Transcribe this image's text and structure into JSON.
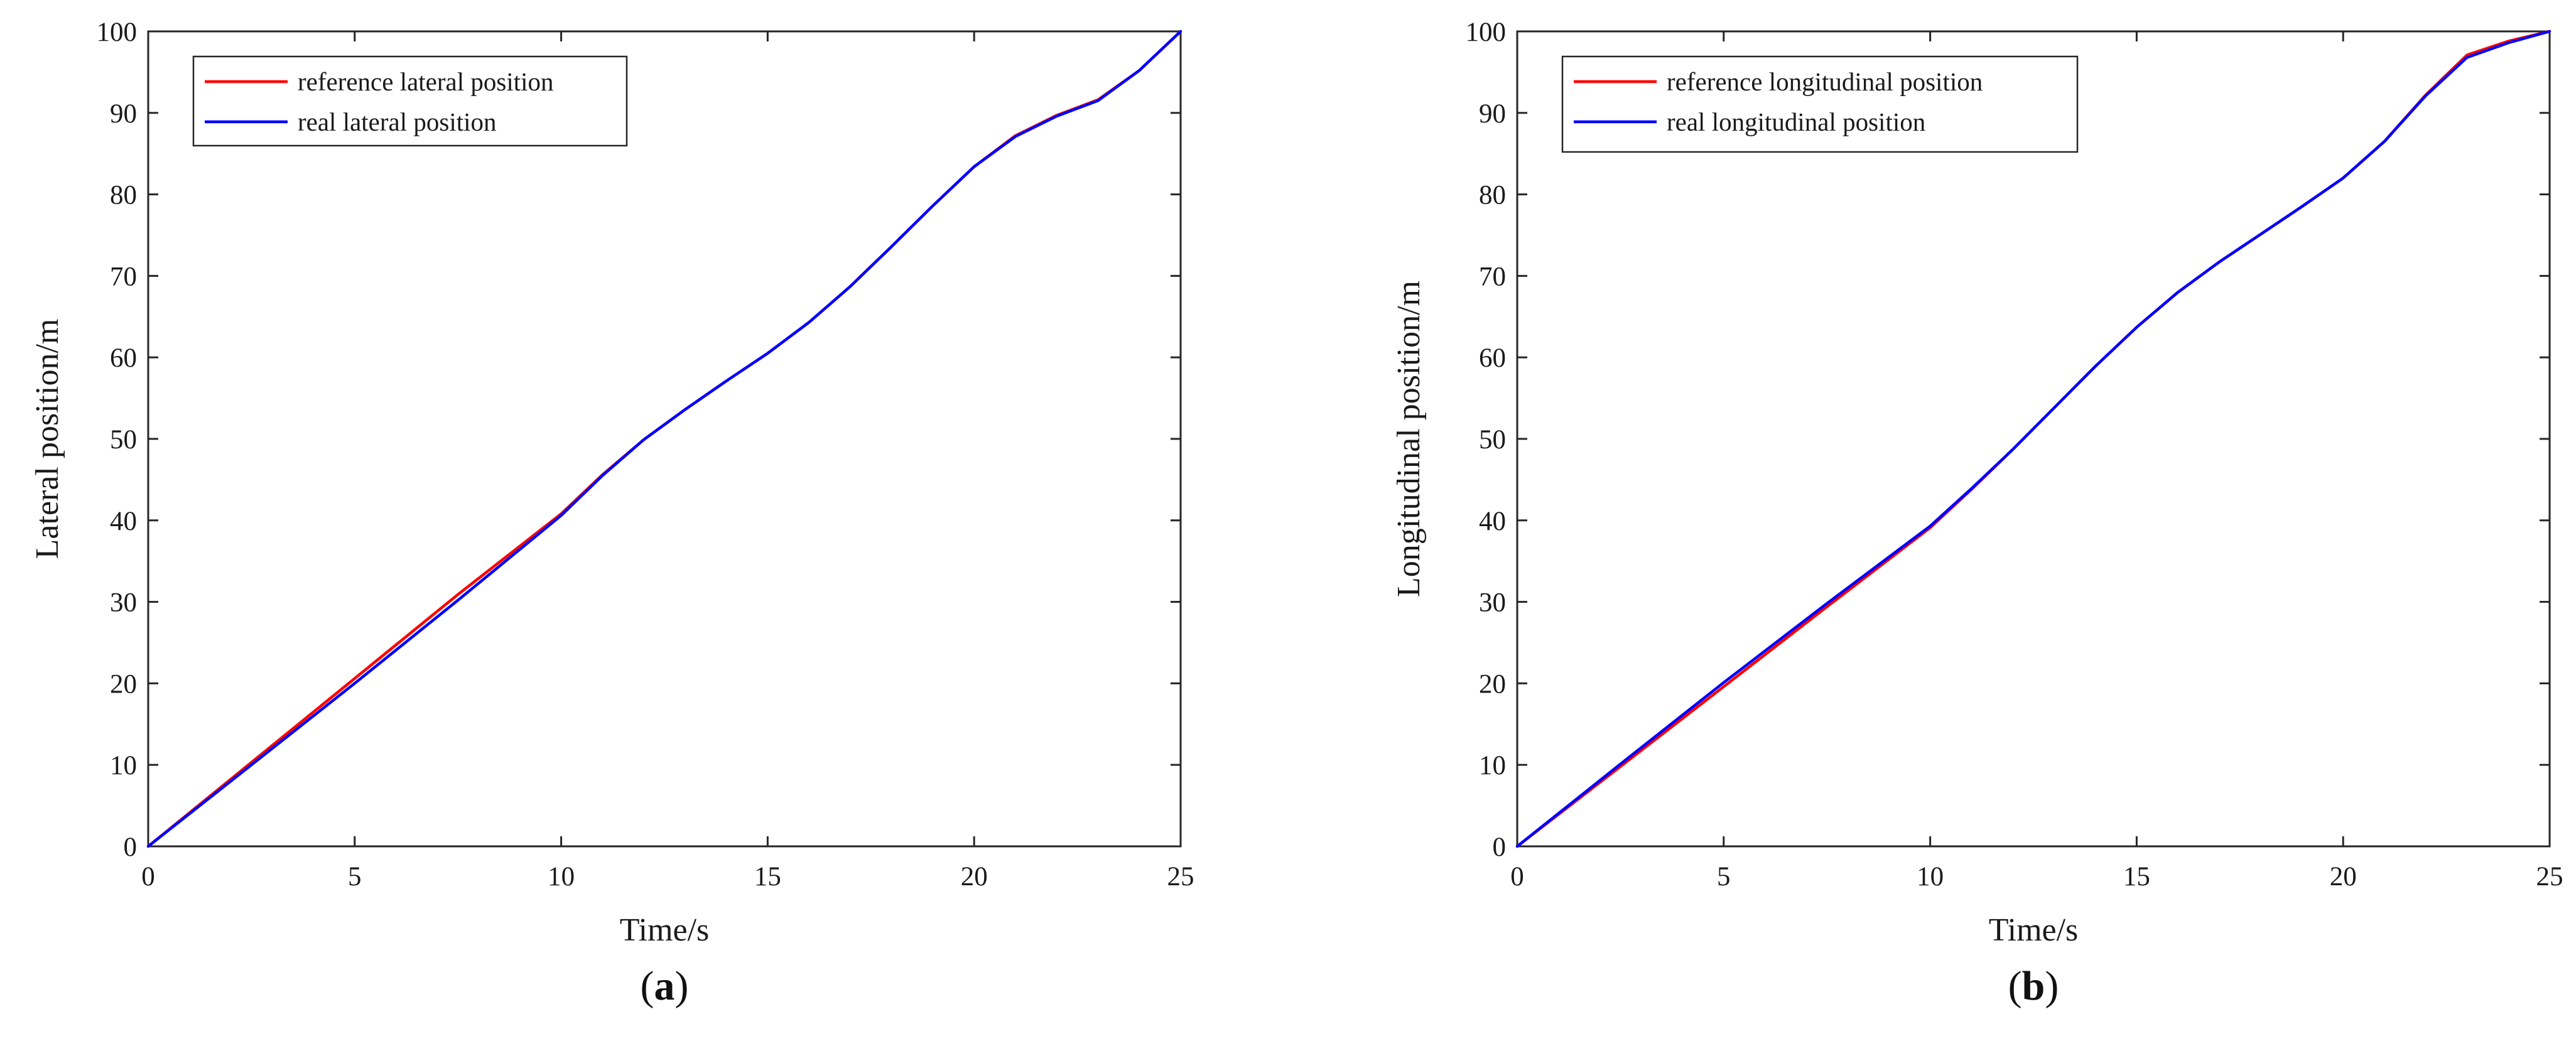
{
  "colors": {
    "reference": "#ff0000",
    "real": "#0000ff",
    "axis": "#262626"
  },
  "chart_data": [
    {
      "type": "line",
      "panel_label": "a",
      "xlabel": "Time/s",
      "ylabel": "Lateral position/m",
      "xlim": [
        0,
        25
      ],
      "ylim": [
        0,
        100
      ],
      "xticks": [
        "0",
        "5",
        "10",
        "15",
        "20",
        "25"
      ],
      "yticks": [
        "0",
        "10",
        "20",
        "30",
        "40",
        "50",
        "60",
        "70",
        "80",
        "90",
        "100"
      ],
      "legend_position": "top-left",
      "series": [
        {
          "name": "reference lateral position",
          "color": "#ff0000",
          "x": [
            0,
            2.5,
            5,
            7.5,
            10,
            11,
            12,
            13,
            14,
            15,
            16,
            17,
            18,
            19,
            20,
            21,
            22,
            23,
            24,
            25
          ],
          "y": [
            0,
            10.3,
            20.6,
            30.9,
            40.8,
            45.6,
            49.9,
            53.6,
            57.1,
            60.5,
            64.3,
            68.7,
            73.6,
            78.6,
            83.4,
            87.2,
            89.7,
            91.6,
            95.2,
            100
          ]
        },
        {
          "name": "real lateral position",
          "color": "#0000ff",
          "x": [
            0,
            2.5,
            5,
            7.5,
            10,
            11,
            12,
            13,
            14,
            15,
            16,
            17,
            18,
            19,
            20,
            21,
            22,
            23,
            24,
            25
          ],
          "y": [
            0,
            10.0,
            20.0,
            30.2,
            40.6,
            45.5,
            49.9,
            53.6,
            57.1,
            60.5,
            64.3,
            68.7,
            73.6,
            78.6,
            83.4,
            87.1,
            89.6,
            91.5,
            95.2,
            100
          ]
        }
      ]
    },
    {
      "type": "line",
      "panel_label": "b",
      "xlabel": "Time/s",
      "ylabel": "Longitudinal position/m",
      "xlim": [
        0,
        25
      ],
      "ylim": [
        0,
        100
      ],
      "xticks": [
        "0",
        "5",
        "10",
        "15",
        "20",
        "25"
      ],
      "yticks": [
        "0",
        "10",
        "20",
        "30",
        "40",
        "50",
        "60",
        "70",
        "80",
        "90",
        "100"
      ],
      "legend_position": "top-left",
      "series": [
        {
          "name": "reference longitudinal position",
          "color": "#ff0000",
          "x": [
            0,
            2.5,
            5,
            7.5,
            10,
            11,
            12,
            13,
            14,
            15,
            16,
            17,
            18,
            19,
            20,
            21,
            22,
            23,
            24,
            25
          ],
          "y": [
            0,
            9.8,
            19.6,
            29.4,
            39.1,
            43.8,
            48.7,
            53.8,
            58.9,
            63.7,
            68.0,
            71.7,
            75.1,
            78.5,
            82.0,
            86.5,
            92.2,
            97.1,
            98.8,
            100
          ]
        },
        {
          "name": "real longitudinal position",
          "color": "#0000ff",
          "x": [
            0,
            2.5,
            5,
            7.5,
            10,
            11,
            12,
            13,
            14,
            15,
            16,
            17,
            18,
            19,
            20,
            21,
            22,
            23,
            24,
            25
          ],
          "y": [
            0,
            10.1,
            20.1,
            29.8,
            39.3,
            43.9,
            48.7,
            53.8,
            58.9,
            63.7,
            68.0,
            71.7,
            75.1,
            78.5,
            82.0,
            86.5,
            92.1,
            96.8,
            98.6,
            100
          ]
        }
      ]
    }
  ]
}
